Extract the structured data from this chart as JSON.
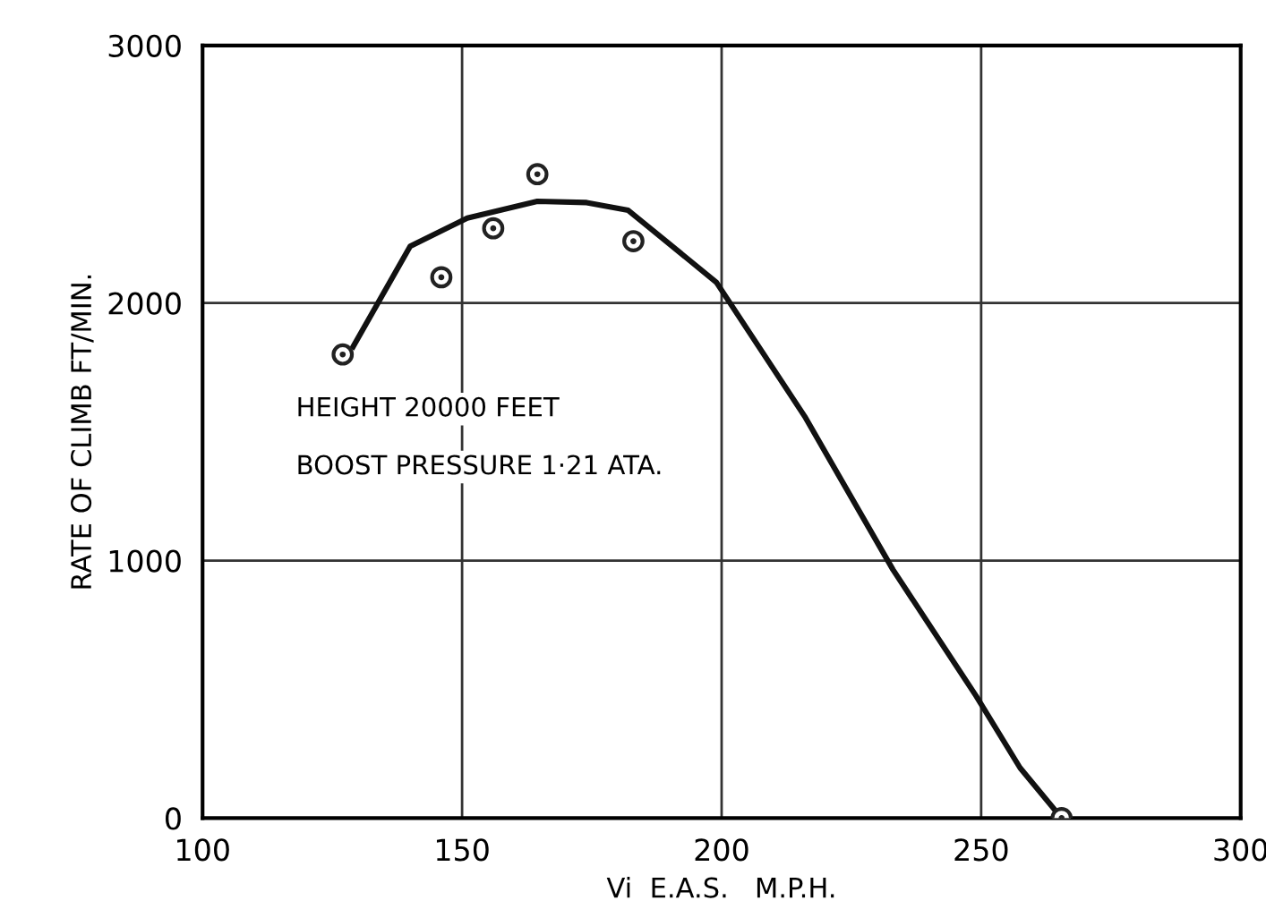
{
  "chart_data": {
    "type": "scatter",
    "xlabel": "Vi  E.A.S.   M.P.H.",
    "ylabel": "RATE OF CLIMB FT/MIN.",
    "annotations": [
      "HEIGHT 20000 FEET",
      "BOOST PRESSURE 1·21 ATA."
    ],
    "xlim": [
      100,
      300
    ],
    "xticks": [
      100,
      150,
      200,
      250,
      300
    ],
    "ylim": [
      0,
      3000
    ],
    "yticks": [
      0,
      1000,
      2000,
      3000
    ],
    "grid": true,
    "series": [
      {
        "color": "#222222",
        "marker": "circle",
        "x": [
          127,
          146,
          156,
          164.5,
          183,
          265.5
        ],
        "values": [
          1800,
          2100,
          2290,
          2500,
          2240,
          0
        ]
      },
      {
        "type": "line",
        "color": "#111111",
        "marker": "none",
        "line_style": "solid",
        "x": [
          129,
          140,
          151,
          164.5,
          174,
          182,
          199,
          216,
          233,
          249,
          257.5,
          265.5
        ],
        "values": [
          1830,
          2220,
          2330,
          2395,
          2390,
          2360,
          2080,
          1560,
          965,
          475,
          195,
          0
        ]
      }
    ]
  }
}
